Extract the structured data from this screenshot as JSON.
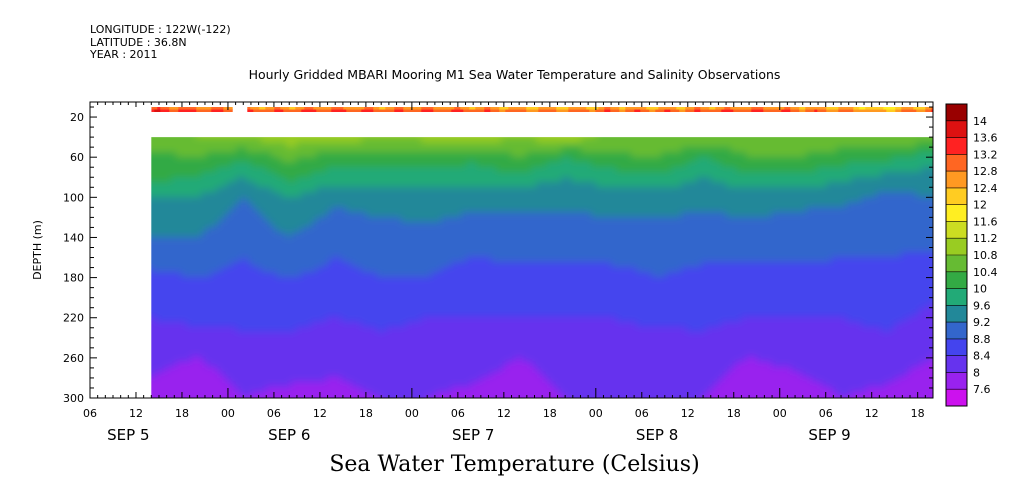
{
  "header": {
    "longitude_line": "LONGITUDE : 122W(-122)",
    "latitude_line": "LATITUDE : 36.8N",
    "year_line": "YEAR : 2011"
  },
  "title": "Hourly Gridded MBARI Mooring M1 Sea Water Temperature and Salinity Observations",
  "footer_label": "Sea Water Temperature (Celsius)",
  "chart_data": {
    "type": "heatmap",
    "title": "Hourly Gridded MBARI Mooring M1 Sea Water Temperature and Salinity Observations",
    "xlabel": "",
    "ylabel": "DEPTH (m)",
    "colorbar_label": "Sea Water Temperature (Celsius)",
    "x_unit": "hours since SEP 5 00:00",
    "xlim": [
      6,
      116
    ],
    "ylim": [
      300,
      5
    ],
    "y_reversed": true,
    "x_ticks": [
      {
        "x": 6,
        "label": "06"
      },
      {
        "x": 12,
        "label": "12"
      },
      {
        "x": 18,
        "label": "18"
      },
      {
        "x": 24,
        "label": "00"
      },
      {
        "x": 30,
        "label": "06"
      },
      {
        "x": 36,
        "label": "12"
      },
      {
        "x": 42,
        "label": "18"
      },
      {
        "x": 48,
        "label": "00"
      },
      {
        "x": 54,
        "label": "06"
      },
      {
        "x": 60,
        "label": "12"
      },
      {
        "x": 66,
        "label": "18"
      },
      {
        "x": 72,
        "label": "00"
      },
      {
        "x": 78,
        "label": "06"
      },
      {
        "x": 84,
        "label": "12"
      },
      {
        "x": 90,
        "label": "18"
      },
      {
        "x": 96,
        "label": "00"
      },
      {
        "x": 102,
        "label": "06"
      },
      {
        "x": 108,
        "label": "12"
      },
      {
        "x": 114,
        "label": "18"
      }
    ],
    "day_labels": [
      {
        "x": 11,
        "label": "SEP  5"
      },
      {
        "x": 32,
        "label": "SEP  6"
      },
      {
        "x": 56,
        "label": "SEP  7"
      },
      {
        "x": 80,
        "label": "SEP  8"
      },
      {
        "x": 102.5,
        "label": "SEP  9"
      }
    ],
    "y_ticks": [
      20,
      60,
      100,
      140,
      180,
      220,
      260,
      300
    ],
    "data_x_start": 14,
    "data_x_end": 116,
    "surface_layer": {
      "depth_top": 10,
      "depth_bottom": 15,
      "gaps": [
        [
          24.5,
          26.5
        ]
      ]
    },
    "missing_depth_band": [
      15,
      40
    ],
    "depths": [
      10,
      40,
      60,
      80,
      100,
      140,
      180,
      220,
      260,
      300
    ],
    "times": [
      14,
      20,
      26,
      32,
      38,
      44,
      50,
      56,
      62,
      68,
      74,
      80,
      86,
      92,
      98,
      104,
      110,
      116
    ],
    "values": [
      [
        13.2,
        13.0,
        12.8,
        12.8,
        13.0,
        12.8,
        12.9,
        12.8,
        12.7,
        12.6,
        12.8,
        12.7,
        12.8,
        12.9,
        12.8,
        12.6,
        12.2,
        12.9
      ],
      [
        10.6,
        10.8,
        10.8,
        11.0,
        11.0,
        10.8,
        10.9,
        11.0,
        10.8,
        11.0,
        10.7,
        10.8,
        10.7,
        10.6,
        10.8,
        10.7,
        10.8,
        10.6
      ],
      [
        10.3,
        10.4,
        10.1,
        10.5,
        10.2,
        10.3,
        10.2,
        10.1,
        10.4,
        10.0,
        10.3,
        10.4,
        10.0,
        10.4,
        10.4,
        10.2,
        10.1,
        9.8
      ],
      [
        10.1,
        10.0,
        9.6,
        10.1,
        9.8,
        9.8,
        9.8,
        9.8,
        9.9,
        9.6,
        9.8,
        9.9,
        9.6,
        9.9,
        9.9,
        9.7,
        9.5,
        9.4
      ],
      [
        9.6,
        9.6,
        9.2,
        9.6,
        9.3,
        9.4,
        9.4,
        9.3,
        9.3,
        9.3,
        9.4,
        9.4,
        9.3,
        9.4,
        9.3,
        9.3,
        9.1,
        9.2
      ],
      [
        9.2,
        9.2,
        8.9,
        9.2,
        8.9,
        9.0,
        9.1,
        9.0,
        9.0,
        9.0,
        9.0,
        9.0,
        9.0,
        9.0,
        9.0,
        8.9,
        8.9,
        8.9
      ],
      [
        8.7,
        8.8,
        8.7,
        8.8,
        8.7,
        8.8,
        8.8,
        8.6,
        8.7,
        8.7,
        8.7,
        8.8,
        8.7,
        8.7,
        8.7,
        8.7,
        8.7,
        8.6
      ],
      [
        8.4,
        8.5,
        8.5,
        8.5,
        8.4,
        8.5,
        8.4,
        8.4,
        8.4,
        8.4,
        8.4,
        8.5,
        8.5,
        8.4,
        8.4,
        8.4,
        8.5,
        8.3
      ],
      [
        8.1,
        8.0,
        8.2,
        8.2,
        8.1,
        8.2,
        8.2,
        8.2,
        8.0,
        8.2,
        8.2,
        8.1,
        8.2,
        8.0,
        8.1,
        8.2,
        8.2,
        8.0
      ],
      [
        7.9,
        7.7,
        8.0,
        7.9,
        7.9,
        8.0,
        8.0,
        7.9,
        7.7,
        8.0,
        8.0,
        8.0,
        8.0,
        7.7,
        7.8,
        8.0,
        7.9,
        7.7
      ]
    ],
    "colorbar": {
      "levels": [
        7.6,
        8,
        8.4,
        8.8,
        9.2,
        9.6,
        10,
        10.4,
        10.8,
        11.2,
        11.6,
        12,
        12.4,
        12.8,
        13.2,
        13.6,
        14
      ],
      "labels": [
        "7.6",
        "8",
        "8.4",
        "8.8",
        "9.2",
        "9.6",
        "10",
        "10.4",
        "10.8",
        "11.2",
        "11.6",
        "12",
        "12.4",
        "12.8",
        "13.2",
        "13.6",
        "14"
      ],
      "colors": [
        "#cc11ee",
        "#9922ee",
        "#6633ee",
        "#4444ee",
        "#3366cc",
        "#228899",
        "#22aa77",
        "#33aa44",
        "#66bb33",
        "#99cc22",
        "#ccdd22",
        "#ffee22",
        "#ffcc22",
        "#ff9922",
        "#ff6622",
        "#ff2222",
        "#dd1111",
        "#990000"
      ]
    }
  }
}
